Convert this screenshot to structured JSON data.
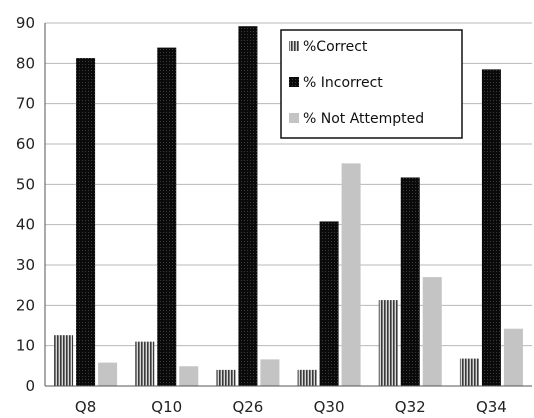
{
  "chart_data": {
    "type": "bar",
    "categories": [
      "Q8",
      "Q10",
      "Q26",
      "Q30",
      "Q32",
      "Q34"
    ],
    "series": [
      {
        "name": "%Correct",
        "values": [
          12.6,
          11,
          4,
          4,
          21.3,
          6.8
        ],
        "color": "#555555",
        "pattern": "vertical-stripes"
      },
      {
        "name": "% Incorrect",
        "values": [
          81.3,
          83.9,
          89.2,
          40.8,
          51.7,
          78.5
        ],
        "color": "#111111",
        "pattern": "dense-dark"
      },
      {
        "name": "% Not Attempted",
        "values": [
          5.8,
          4.9,
          6.6,
          55.2,
          27,
          14.2
        ],
        "color": "#c4c4c4",
        "pattern": "solid"
      }
    ],
    "ylim": [
      0,
      90
    ],
    "yticks": [
      0,
      10,
      20,
      30,
      40,
      50,
      60,
      70,
      80,
      90
    ],
    "grid": true,
    "legend_position": "top-right"
  }
}
